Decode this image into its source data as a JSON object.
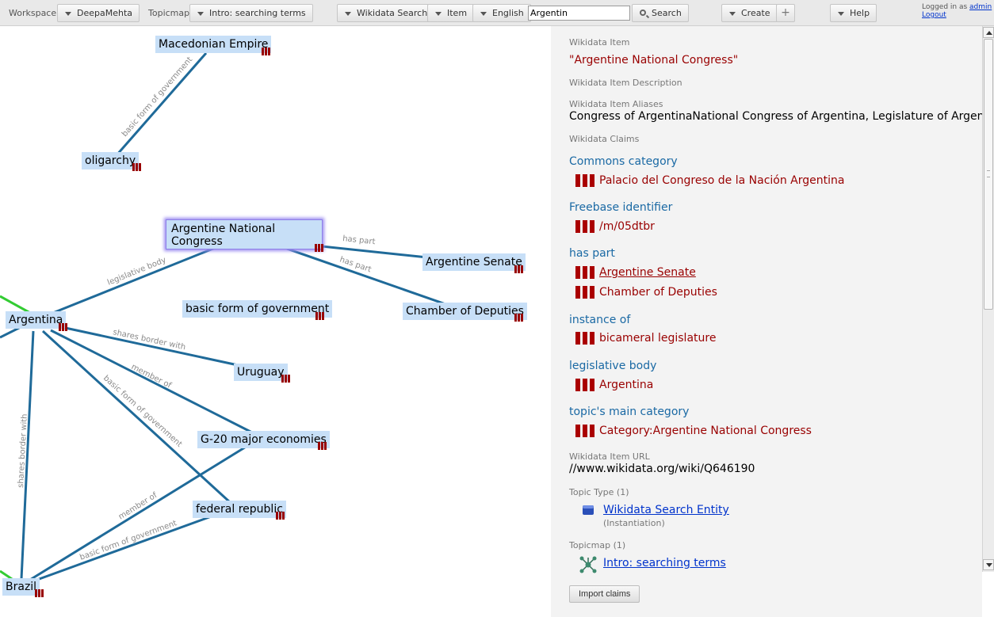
{
  "toolbar": {
    "workspace_label": "Workspace",
    "workspace_value": "DeepaMehta",
    "topicmap_label": "Topicmap",
    "topicmap_value": "Intro: searching terms",
    "search_type": "Wikidata Search",
    "item_type": "Item",
    "language": "English",
    "search_value": "Argentin",
    "search_button": "Search",
    "create_button": "Create",
    "plus_button": "+",
    "help_button": "Help",
    "logged_in_prefix": "Logged in as",
    "user": "admin",
    "logout": "Logout"
  },
  "topicmap": {
    "topics": [
      {
        "label": "Macedonian Empire"
      },
      {
        "label": "oligarchy"
      },
      {
        "label": "Argentine National Congress"
      },
      {
        "label": "Argentine Senate"
      },
      {
        "label": "basic form of government"
      },
      {
        "label": "Chamber of Deputies"
      },
      {
        "label": "Argentina"
      },
      {
        "label": "Uruguay"
      },
      {
        "label": "G-20 major economies"
      },
      {
        "label": "federal republic"
      },
      {
        "label": "Brazil"
      }
    ],
    "assoc_labels": {
      "basic_form": "basic form of government",
      "has_part": "has part",
      "legislative_body": "legislative body",
      "shares_border": "shares border with",
      "member_of": "member of"
    }
  },
  "detail": {
    "item_label": "Wikidata Item",
    "item_value": "\"Argentine National Congress\"",
    "description_label": "Wikidata Item Description",
    "aliases_label": "Wikidata Item Aliases",
    "aliases_value": "Congress of ArgentinaNational Congress of Argentina, Legislature of Argentina",
    "claims_label": "Wikidata Claims",
    "claims": [
      {
        "property": "Commons category",
        "values": [
          "Palacio del Congreso de la Nación Argentina"
        ]
      },
      {
        "property": "Freebase identifier",
        "values": [
          "/m/05dtbr"
        ]
      },
      {
        "property": "has part",
        "values": [
          "Argentine Senate",
          "Chamber of Deputies"
        ]
      },
      {
        "property": "instance of",
        "values": [
          "bicameral legislature"
        ]
      },
      {
        "property": "legislative body",
        "values": [
          "Argentina"
        ]
      },
      {
        "property": "topic's main category",
        "values": [
          "Category:Argentine National Congress"
        ]
      }
    ],
    "url_label": "Wikidata Item URL",
    "url_value": "//www.wikidata.org/wiki/Q646190",
    "topic_type_label": "Topic Type (1)",
    "topic_type_link": "Wikidata Search Entity",
    "topic_type_sub": "(Instantiation)",
    "topicmap_label": "Topicmap (1)",
    "topicmap_link": "Intro: searching terms",
    "import_button": "Import claims"
  },
  "colors": {
    "assoc_line": "#1f6a99",
    "assoc_line_green": "#33cc33",
    "topic_bg": "#c7dff7",
    "topic_icon": "#990000",
    "claim_heading": "#1a69a4",
    "claim_value": "#990000"
  }
}
